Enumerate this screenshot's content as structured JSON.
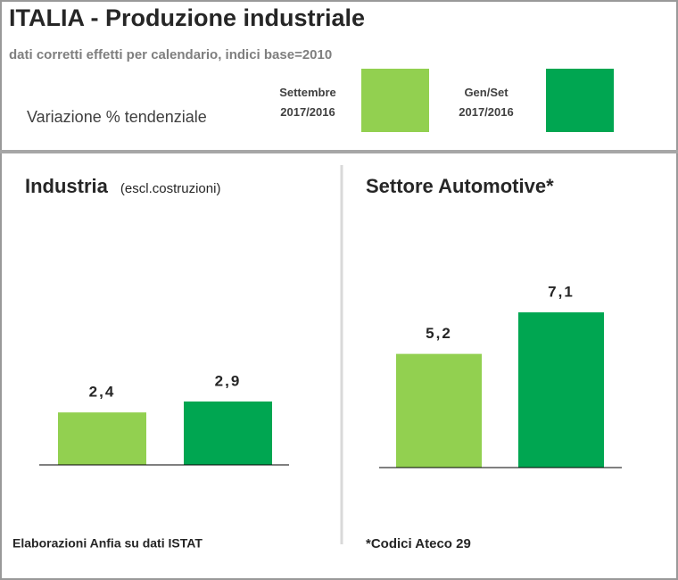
{
  "title": "ITALIA -  Produzione industriale",
  "subtitle": "dati corretti effetti per calendario,  indici base=2010",
  "legend": {
    "title": "Variazione % tendenziale",
    "items": [
      {
        "name": "Settembre 2017/2016",
        "color": "#92d050"
      },
      {
        "name": "Gen/Set 2017/2016",
        "color": "#00a651"
      }
    ]
  },
  "chart_data": [
    {
      "type": "bar",
      "title": "Industria",
      "subtitle": "(escl.costruzioni)",
      "values": [
        2.4,
        2.9
      ],
      "value_labels": [
        "2,4",
        "2,9"
      ],
      "note": "Elaborazioni Anfia su dati ISTAT"
    },
    {
      "type": "bar",
      "title": "Settore Automotive*",
      "values": [
        5.2,
        7.1
      ],
      "value_labels": [
        "5,2",
        "7,1"
      ],
      "note": "*Codici Ateco 29"
    }
  ]
}
